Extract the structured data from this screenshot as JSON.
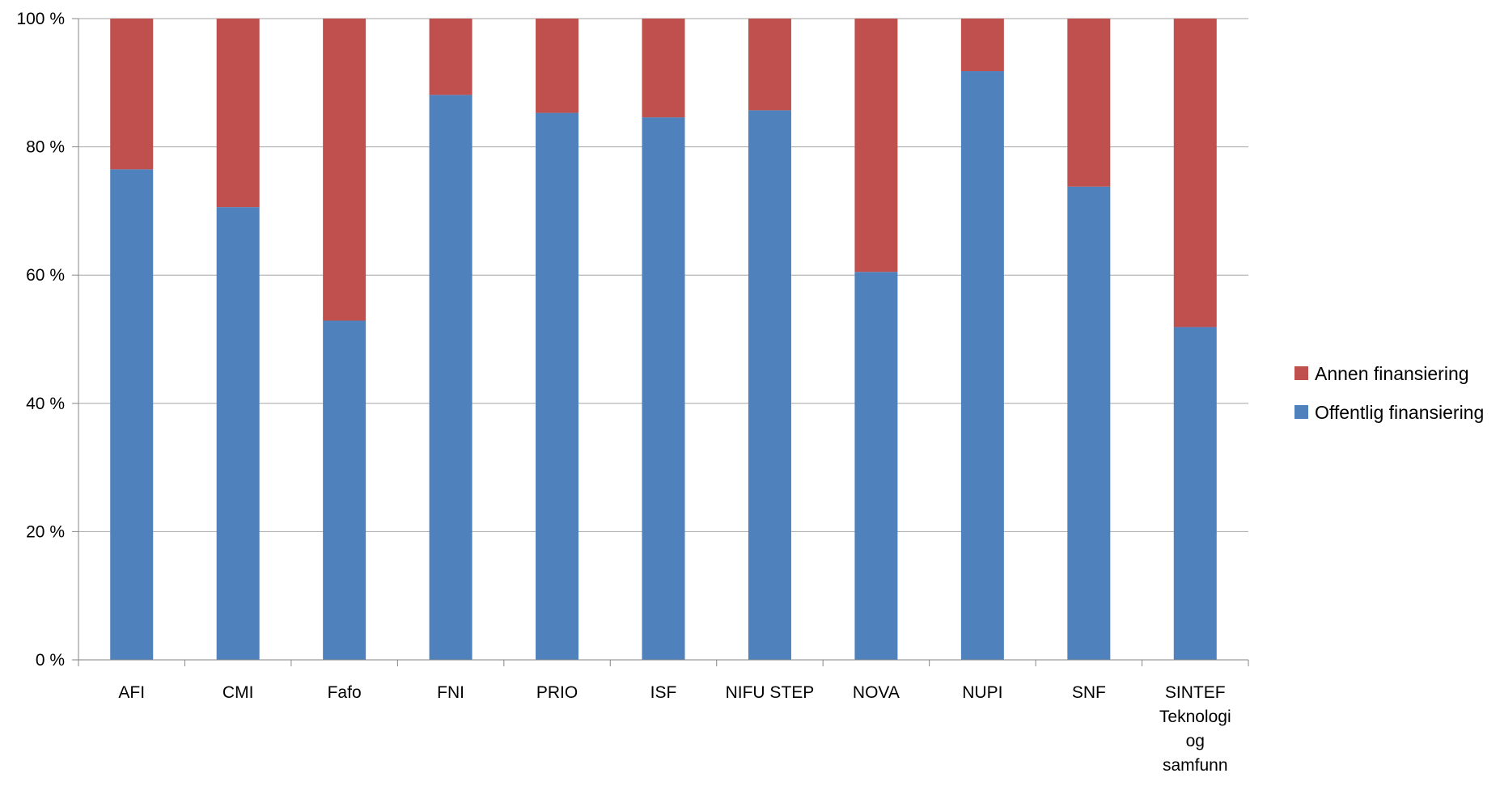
{
  "chart_data": {
    "type": "bar",
    "stacked": true,
    "percent_stacked": true,
    "categories": [
      "AFI",
      "CMI",
      "Fafo",
      "FNI",
      "PRIO",
      "ISF",
      "NIFU STEP",
      "NOVA",
      "NUPI",
      "SNF",
      "SINTEF Teknologi og samfunn"
    ],
    "category_lines": [
      [
        "AFI"
      ],
      [
        "CMI"
      ],
      [
        "Fafo"
      ],
      [
        "FNI"
      ],
      [
        "PRIO"
      ],
      [
        "ISF"
      ],
      [
        "NIFU STEP"
      ],
      [
        "NOVA"
      ],
      [
        "NUPI"
      ],
      [
        "SNF"
      ],
      [
        "SINTEF",
        "Teknologi",
        "og",
        "samfunn"
      ]
    ],
    "series": [
      {
        "name": "Offentlig finansiering",
        "color": "#4f81bd",
        "values": [
          76.5,
          70.6,
          52.9,
          88.1,
          85.3,
          84.6,
          85.7,
          60.5,
          91.8,
          73.8,
          51.9
        ]
      },
      {
        "name": "Annen finansiering",
        "color": "#c0504d",
        "values": [
          23.5,
          29.4,
          47.1,
          11.9,
          14.7,
          15.4,
          14.3,
          39.5,
          8.2,
          26.2,
          48.1
        ]
      }
    ],
    "y_ticks": [
      "0 %",
      "20 %",
      "40 %",
      "60 %",
      "80 %",
      "100 %"
    ],
    "y_tick_values": [
      0,
      20,
      40,
      60,
      80,
      100
    ],
    "ylim": [
      0,
      100
    ],
    "grid": true,
    "legend": {
      "position": "right",
      "order": [
        "Annen finansiering",
        "Offentlig finansiering"
      ]
    },
    "title": "",
    "xlabel": "",
    "ylabel": ""
  }
}
